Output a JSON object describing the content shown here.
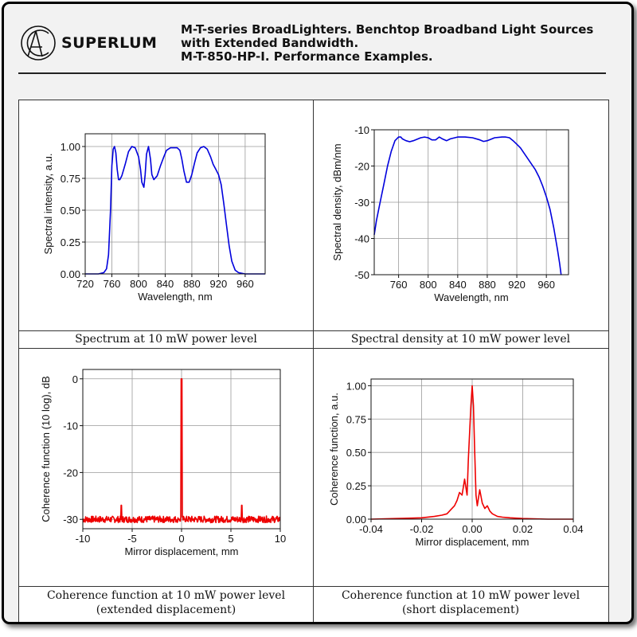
{
  "header": {
    "brand": "SUPERLUM",
    "title_lines": [
      "M-T-series BroadLighters. Benchtop Broadband Light Sources",
      "with Extended Bandwidth.",
      "M-T-850-HP-I. Performance Examples."
    ]
  },
  "captions": {
    "spectrum": "Spectrum at 10 mW power level",
    "density": "Spectral density at 10 mW power level",
    "coh_ext_1": "Coherence function at 10 mW power level",
    "coh_ext_2": "(extended displacement)",
    "coh_short_1": "Coherence function at 10 mW power level",
    "coh_short_2": "(short displacement)"
  },
  "colors": {
    "spectrum": "#0000dd",
    "coherence": "#ee0000",
    "grid": "#9a9a9a"
  },
  "chart_data": [
    {
      "id": "spectrum",
      "type": "line",
      "title": "",
      "xlabel": "Wavelength, nm",
      "ylabel": "Spectral intensity, a.u.",
      "xlim": [
        720,
        990
      ],
      "ylim": [
        0,
        1.1
      ],
      "xticks": [
        720,
        760,
        800,
        840,
        880,
        920,
        960
      ],
      "xtick_labels": [
        "720",
        "760",
        "800",
        "840",
        "880",
        "920",
        "960"
      ],
      "yticks": [
        0,
        0.25,
        0.5,
        0.75,
        1.0
      ],
      "ytick_labels": [
        "0.00",
        "0.25",
        "0.50",
        "0.75",
        "1.00"
      ],
      "series": [
        {
          "name": "spectrum",
          "x": [
            720,
            740,
            748,
            752,
            755,
            758,
            760,
            762,
            764,
            766,
            768,
            770,
            772,
            775,
            780,
            785,
            790,
            795,
            800,
            803,
            805,
            808,
            810,
            812,
            815,
            818,
            820,
            823,
            828,
            833,
            838,
            842,
            848,
            853,
            858,
            862,
            865,
            868,
            872,
            876,
            880,
            884,
            888,
            893,
            898,
            903,
            908,
            912,
            916,
            920,
            924,
            928,
            932,
            936,
            940,
            945,
            950,
            960,
            990
          ],
          "y": [
            0,
            0,
            0.01,
            0.04,
            0.15,
            0.5,
            0.85,
            0.98,
            1.0,
            0.95,
            0.82,
            0.74,
            0.74,
            0.77,
            0.86,
            0.96,
            1.0,
            0.99,
            0.92,
            0.82,
            0.72,
            0.68,
            0.78,
            0.94,
            1.0,
            0.9,
            0.78,
            0.74,
            0.77,
            0.85,
            0.92,
            0.97,
            0.99,
            0.99,
            0.99,
            0.97,
            0.9,
            0.81,
            0.72,
            0.72,
            0.78,
            0.87,
            0.95,
            0.99,
            1.0,
            0.98,
            0.92,
            0.86,
            0.82,
            0.78,
            0.7,
            0.55,
            0.38,
            0.22,
            0.1,
            0.03,
            0.01,
            0,
            0
          ]
        }
      ]
    },
    {
      "id": "density",
      "type": "line",
      "title": "",
      "xlabel": "Wavelength, nm",
      "ylabel": "Spectral density, dBm/nm",
      "xlim": [
        727,
        990
      ],
      "ylim": [
        -50,
        -10
      ],
      "xticks": [
        760,
        800,
        840,
        880,
        920,
        960
      ],
      "xtick_labels": [
        "760",
        "800",
        "840",
        "880",
        "920",
        "960"
      ],
      "yticks": [
        -50,
        -40,
        -30,
        -20,
        -10
      ],
      "ytick_labels": [
        "-50",
        "-40",
        "-30",
        "-20",
        "-10"
      ],
      "series": [
        {
          "name": "density",
          "x": [
            727,
            730,
            735,
            740,
            745,
            750,
            755,
            760,
            763,
            765,
            770,
            775,
            780,
            790,
            795,
            800,
            805,
            810,
            815,
            820,
            825,
            830,
            840,
            850,
            860,
            870,
            875,
            880,
            890,
            900,
            905,
            910,
            915,
            920,
            925,
            930,
            935,
            940,
            945,
            950,
            955,
            960,
            965,
            970,
            975,
            978,
            980
          ],
          "y": [
            -39,
            -35,
            -30,
            -25,
            -20,
            -16,
            -13,
            -12,
            -12,
            -12.5,
            -13,
            -13.3,
            -13,
            -12.2,
            -12,
            -12.2,
            -12.8,
            -12.8,
            -12,
            -12.6,
            -13,
            -12.5,
            -12,
            -12,
            -12.2,
            -12.8,
            -13.2,
            -13,
            -12.2,
            -12,
            -12,
            -12.2,
            -13,
            -14,
            -15,
            -16.5,
            -18,
            -19.5,
            -21,
            -23,
            -25.5,
            -28.5,
            -32,
            -37,
            -43,
            -47,
            -50
          ]
        }
      ]
    },
    {
      "id": "coh_ext",
      "type": "line",
      "title": "",
      "xlabel": "Mirror displacement, mm",
      "ylabel": "Coherence function (10 log), dB",
      "xlim": [
        -10,
        10
      ],
      "ylim": [
        -32,
        2
      ],
      "xticks": [
        -10,
        -5,
        0,
        5,
        10
      ],
      "xtick_labels": [
        "-10",
        "-5",
        "0",
        "5",
        "10"
      ],
      "yticks": [
        -30,
        -20,
        -10,
        0
      ],
      "ytick_labels": [
        "-30",
        "-20",
        "-10",
        "0"
      ],
      "noise_floor": -30,
      "series": [
        {
          "name": "coherence",
          "x": [
            -6.1,
            -0.3,
            0,
            0.3,
            6.1
          ],
          "y": [
            -27,
            -30,
            0,
            -30,
            -27
          ]
        }
      ]
    },
    {
      "id": "coh_short",
      "type": "line",
      "title": "",
      "xlabel": "Mirror displacement, mm",
      "ylabel": "Coherence function, a.u.",
      "xlim": [
        -0.04,
        0.04
      ],
      "ylim": [
        0,
        1.05
      ],
      "xticks": [
        -0.04,
        -0.02,
        0.0,
        0.02,
        0.04
      ],
      "xtick_labels": [
        "-0.04",
        "-0.02",
        "0.00",
        "0.02",
        "0.04"
      ],
      "yticks": [
        0,
        0.25,
        0.5,
        0.75,
        1.0
      ],
      "ytick_labels": [
        "0.00",
        "0.25",
        "0.50",
        "0.75",
        "1.00"
      ],
      "series": [
        {
          "name": "coherence",
          "x": [
            -0.04,
            -0.03,
            -0.02,
            -0.015,
            -0.012,
            -0.01,
            -0.008,
            -0.007,
            -0.006,
            -0.005,
            -0.004,
            -0.003,
            -0.002,
            -0.0015,
            -0.001,
            -0.0005,
            0,
            0.0005,
            0.001,
            0.0015,
            0.002,
            0.003,
            0.004,
            0.005,
            0.006,
            0.007,
            0.008,
            0.01,
            0.012,
            0.015,
            0.02,
            0.03,
            0.04
          ],
          "y": [
            0,
            0.005,
            0.01,
            0.02,
            0.03,
            0.04,
            0.08,
            0.1,
            0.14,
            0.2,
            0.18,
            0.3,
            0.18,
            0.45,
            0.65,
            0.85,
            1.0,
            0.85,
            0.5,
            0.18,
            0.1,
            0.22,
            0.12,
            0.08,
            0.1,
            0.06,
            0.04,
            0.02,
            0.015,
            0.01,
            0.005,
            0.0,
            0
          ]
        }
      ]
    }
  ]
}
